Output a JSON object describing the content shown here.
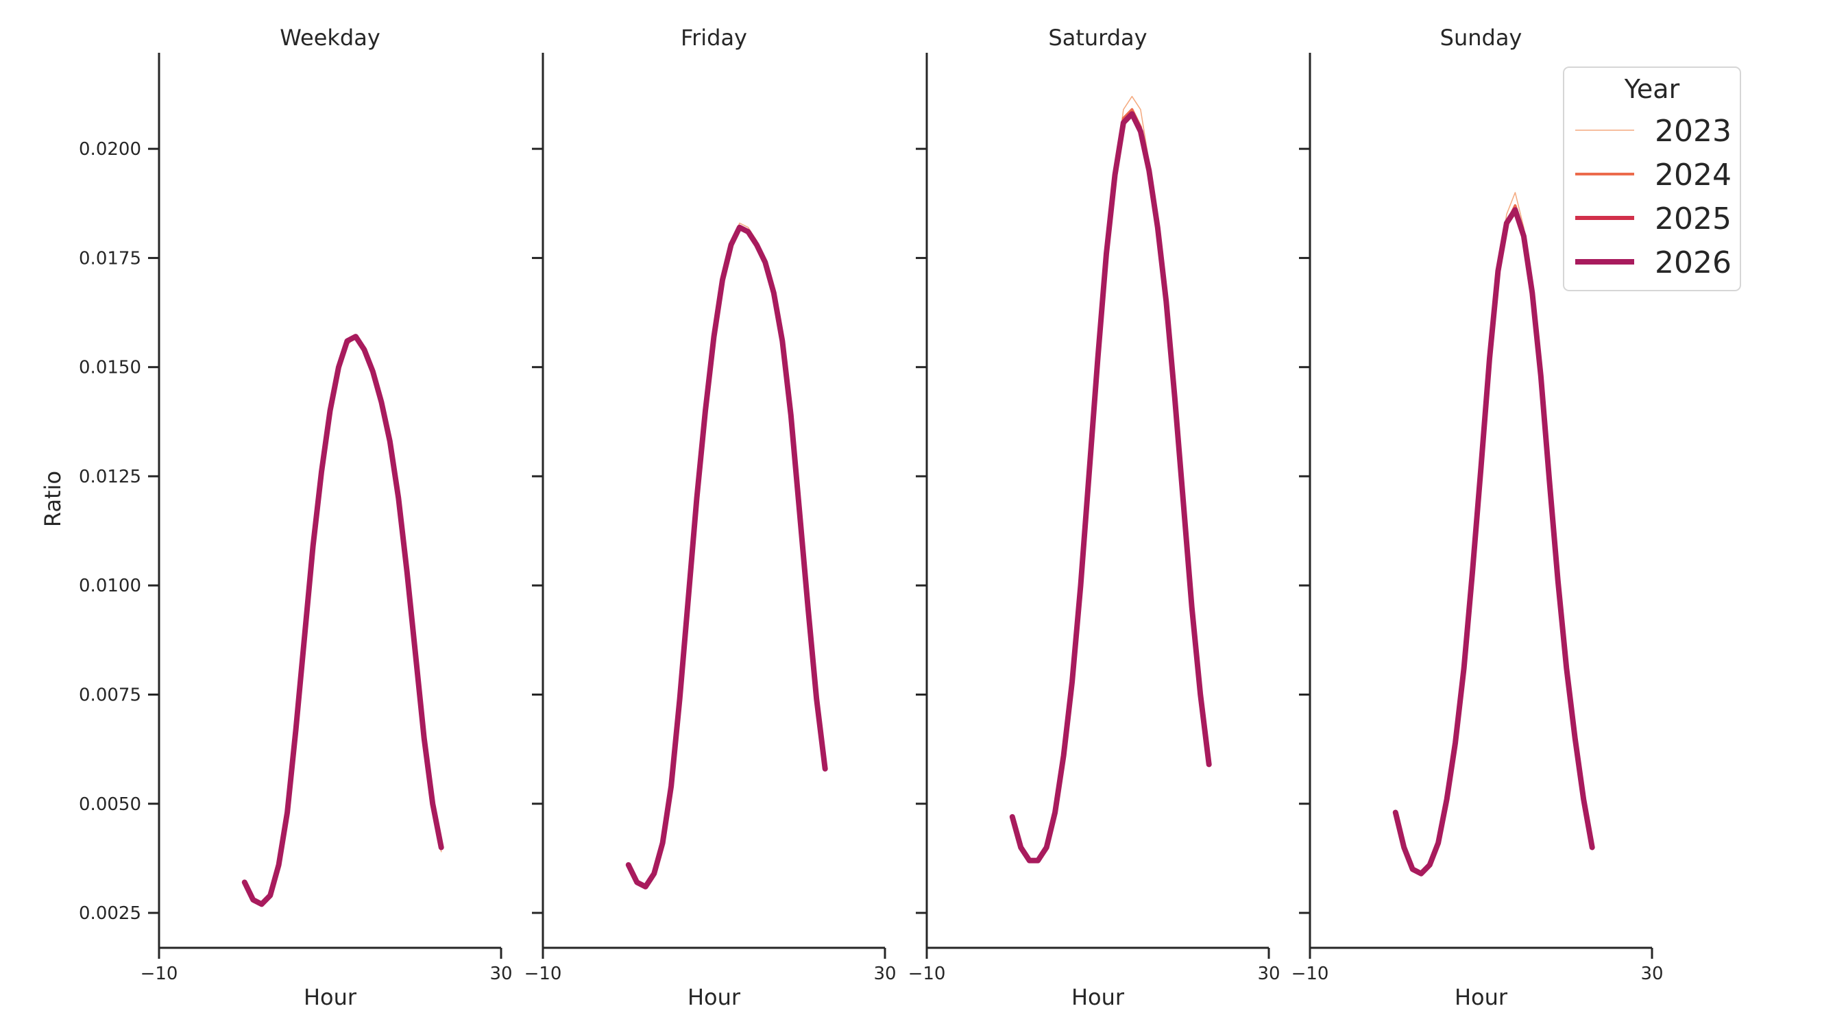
{
  "chart_data": {
    "type": "line",
    "ylabel": "Ratio",
    "xlabel": "Hour",
    "xlim": [
      -10,
      30
    ],
    "ylim": [
      0.0017,
      0.0222
    ],
    "x_ticks": [
      -10,
      30
    ],
    "x_tick_labels": [
      "−10",
      "30"
    ],
    "y_ticks": [
      0.0025,
      0.005,
      0.0075,
      0.01,
      0.0125,
      0.015,
      0.0175,
      0.02
    ],
    "y_tick_labels": [
      "0.0025",
      "0.0050",
      "0.0075",
      "0.0100",
      "0.0125",
      "0.0150",
      "0.0175",
      "0.0200"
    ],
    "legend": {
      "title": "Year",
      "placement": "top-right",
      "entries": [
        {
          "label": "2023",
          "color": "#f4a97e",
          "width": 1.5
        },
        {
          "label": "2024",
          "color": "#ec6b4c",
          "width": 4
        },
        {
          "label": "2025",
          "color": "#d1304a",
          "width": 6
        },
        {
          "label": "2026",
          "color": "#a81b5d",
          "width": 8
        }
      ]
    },
    "x": [
      0,
      1,
      2,
      3,
      4,
      5,
      6,
      7,
      8,
      9,
      10,
      11,
      12,
      13,
      14,
      15,
      16,
      17,
      18,
      19,
      20,
      21,
      22,
      23
    ],
    "panels": [
      {
        "title": "Weekday",
        "series": [
          {
            "name": "2023",
            "values": [
              0.0032,
              0.0028,
              0.0027,
              0.0029,
              0.0036,
              0.0048,
              0.0067,
              0.0088,
              0.0109,
              0.0126,
              0.014,
              0.015,
              0.0155,
              0.0157,
              0.0154,
              0.0149,
              0.0142,
              0.0133,
              0.012,
              0.0103,
              0.0084,
              0.0065,
              0.005,
              0.0039
            ]
          },
          {
            "name": "2024",
            "values": [
              0.0032,
              0.0028,
              0.0027,
              0.0029,
              0.0036,
              0.0048,
              0.0067,
              0.0088,
              0.0109,
              0.0126,
              0.014,
              0.015,
              0.0156,
              0.0157,
              0.0154,
              0.0149,
              0.0142,
              0.0133,
              0.012,
              0.0103,
              0.0084,
              0.0065,
              0.005,
              0.004
            ]
          },
          {
            "name": "2025",
            "values": [
              0.0032,
              0.0028,
              0.0027,
              0.0029,
              0.0036,
              0.0048,
              0.0067,
              0.0088,
              0.0109,
              0.0126,
              0.014,
              0.015,
              0.0156,
              0.0157,
              0.0154,
              0.0149,
              0.0142,
              0.0133,
              0.012,
              0.0103,
              0.0084,
              0.0065,
              0.005,
              0.004
            ]
          },
          {
            "name": "2026",
            "values": [
              0.0032,
              0.0028,
              0.0027,
              0.0029,
              0.0036,
              0.0048,
              0.0067,
              0.0088,
              0.0109,
              0.0126,
              0.014,
              0.015,
              0.0156,
              0.0157,
              0.0154,
              0.0149,
              0.0142,
              0.0133,
              0.012,
              0.0103,
              0.0084,
              0.0065,
              0.005,
              0.004
            ]
          }
        ]
      },
      {
        "title": "Friday",
        "series": [
          {
            "name": "2023",
            "values": [
              0.0036,
              0.0032,
              0.0031,
              0.0034,
              0.0041,
              0.0054,
              0.0074,
              0.0097,
              0.012,
              0.014,
              0.0157,
              0.017,
              0.0178,
              0.0183,
              0.0182,
              0.0179,
              0.0174,
              0.0167,
              0.0156,
              0.0139,
              0.0117,
              0.0095,
              0.0074,
              0.0058
            ]
          },
          {
            "name": "2024",
            "values": [
              0.0036,
              0.0032,
              0.0031,
              0.0034,
              0.0041,
              0.0054,
              0.0074,
              0.0097,
              0.012,
              0.014,
              0.0157,
              0.017,
              0.0178,
              0.0182,
              0.0181,
              0.0178,
              0.0174,
              0.0167,
              0.0156,
              0.0139,
              0.0117,
              0.0095,
              0.0074,
              0.0058
            ]
          },
          {
            "name": "2025",
            "values": [
              0.0036,
              0.0032,
              0.0031,
              0.0034,
              0.0041,
              0.0054,
              0.0074,
              0.0097,
              0.012,
              0.014,
              0.0157,
              0.017,
              0.0178,
              0.0182,
              0.0181,
              0.0178,
              0.0174,
              0.0167,
              0.0156,
              0.0139,
              0.0117,
              0.0095,
              0.0074,
              0.0058
            ]
          },
          {
            "name": "2026",
            "values": [
              0.0036,
              0.0032,
              0.0031,
              0.0034,
              0.0041,
              0.0054,
              0.0074,
              0.0097,
              0.012,
              0.014,
              0.0157,
              0.017,
              0.0178,
              0.0182,
              0.0181,
              0.0178,
              0.0174,
              0.0167,
              0.0156,
              0.0139,
              0.0117,
              0.0095,
              0.0074,
              0.0058
            ]
          }
        ]
      },
      {
        "title": "Saturday",
        "series": [
          {
            "name": "2023",
            "values": [
              0.0047,
              0.004,
              0.0037,
              0.0037,
              0.004,
              0.0048,
              0.0061,
              0.0078,
              0.01,
              0.0126,
              0.0152,
              0.0176,
              0.0194,
              0.0209,
              0.0212,
              0.0209,
              0.0197,
              0.0183,
              0.0165,
              0.0143,
              0.0119,
              0.0095,
              0.0075,
              0.0059
            ]
          },
          {
            "name": "2024",
            "values": [
              0.0047,
              0.004,
              0.0037,
              0.0037,
              0.004,
              0.0048,
              0.0061,
              0.0078,
              0.01,
              0.0126,
              0.0152,
              0.0176,
              0.0194,
              0.0207,
              0.0209,
              0.0205,
              0.0195,
              0.0182,
              0.0165,
              0.0143,
              0.0119,
              0.0095,
              0.0075,
              0.0059
            ]
          },
          {
            "name": "2025",
            "values": [
              0.0047,
              0.004,
              0.0037,
              0.0037,
              0.004,
              0.0048,
              0.0061,
              0.0078,
              0.01,
              0.0126,
              0.0152,
              0.0176,
              0.0194,
              0.0206,
              0.0208,
              0.0204,
              0.0195,
              0.0182,
              0.0165,
              0.0143,
              0.0119,
              0.0095,
              0.0075,
              0.0059
            ]
          },
          {
            "name": "2026",
            "values": [
              0.0047,
              0.004,
              0.0037,
              0.0037,
              0.004,
              0.0048,
              0.0061,
              0.0078,
              0.01,
              0.0126,
              0.0152,
              0.0176,
              0.0194,
              0.0206,
              0.0208,
              0.0204,
              0.0195,
              0.0182,
              0.0165,
              0.0143,
              0.0119,
              0.0095,
              0.0075,
              0.0059
            ]
          }
        ]
      },
      {
        "title": "Sunday",
        "series": [
          {
            "name": "2023",
            "values": [
              0.0048,
              0.004,
              0.0035,
              0.0034,
              0.0036,
              0.0041,
              0.0051,
              0.0064,
              0.0081,
              0.0103,
              0.0127,
              0.0152,
              0.0172,
              0.0185,
              0.019,
              0.0182,
              0.0168,
              0.0148,
              0.0124,
              0.0101,
              0.0081,
              0.0065,
              0.0051,
              0.004
            ]
          },
          {
            "name": "2024",
            "values": [
              0.0048,
              0.004,
              0.0035,
              0.0034,
              0.0036,
              0.0041,
              0.0051,
              0.0064,
              0.0081,
              0.0103,
              0.0127,
              0.0152,
              0.0172,
              0.0183,
              0.0187,
              0.0181,
              0.0167,
              0.0148,
              0.0124,
              0.0101,
              0.0081,
              0.0065,
              0.0051,
              0.004
            ]
          },
          {
            "name": "2025",
            "values": [
              0.0048,
              0.004,
              0.0035,
              0.0034,
              0.0036,
              0.0041,
              0.0051,
              0.0064,
              0.0081,
              0.0103,
              0.0127,
              0.0152,
              0.0172,
              0.0183,
              0.0186,
              0.018,
              0.0167,
              0.0148,
              0.0124,
              0.0101,
              0.0081,
              0.0065,
              0.0051,
              0.004
            ]
          },
          {
            "name": "2026",
            "values": [
              0.0048,
              0.004,
              0.0035,
              0.0034,
              0.0036,
              0.0041,
              0.0051,
              0.0064,
              0.0081,
              0.0103,
              0.0127,
              0.0152,
              0.0172,
              0.0183,
              0.0186,
              0.018,
              0.0167,
              0.0148,
              0.0124,
              0.0101,
              0.0081,
              0.0065,
              0.0051,
              0.004
            ]
          }
        ]
      }
    ]
  }
}
